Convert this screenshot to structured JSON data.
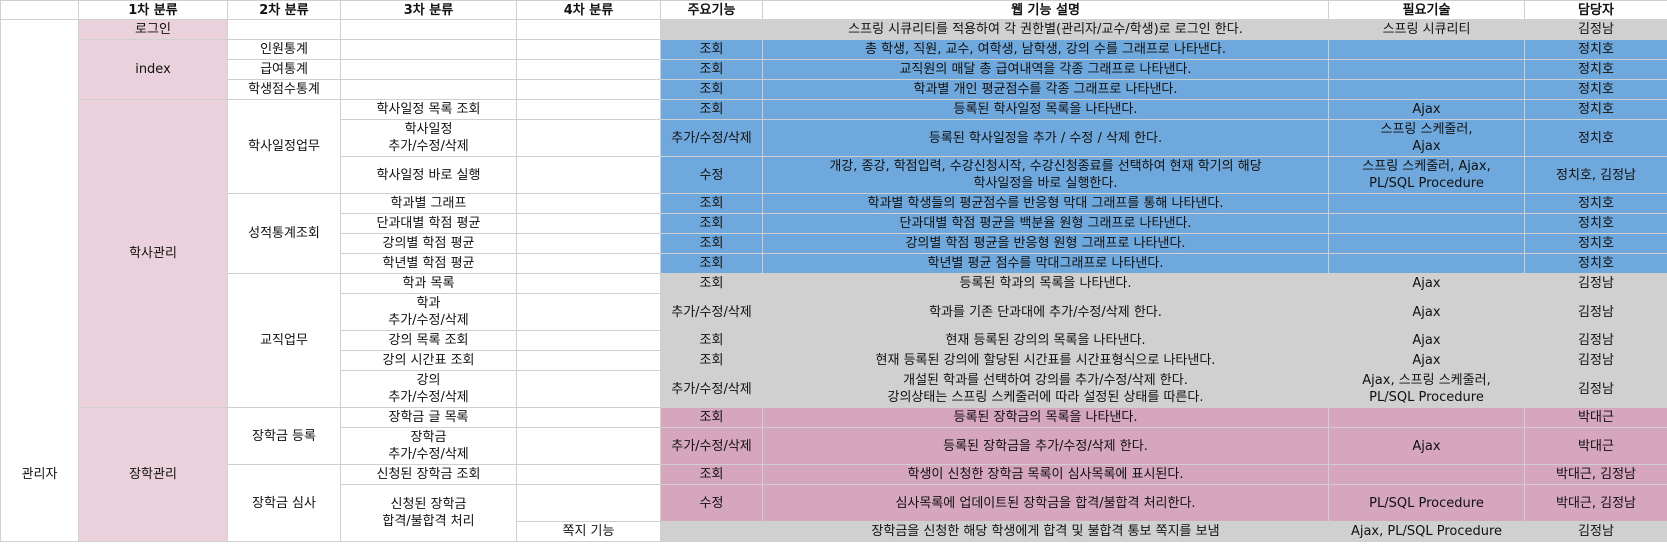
{
  "headers": [
    "1차 분류",
    "2차 분류",
    "3차 분류",
    "4차 분류",
    "주요기능",
    "웹 기능 설명",
    "필요기술",
    "담당자"
  ],
  "col0": "관리자",
  "cat1": {
    "login": "로그인",
    "index": "index",
    "academic": "학사관리",
    "scholarship": "장학관리"
  },
  "cat2": {
    "staff_stats": "인원통계",
    "salary_stats": "급여통계",
    "student_score_stats": "학생점수통계",
    "schedule_work": "학사일정업무",
    "grade_stats": "성적통계조회",
    "faculty_work": "교직업무",
    "scholarship_reg": "장학금 등록",
    "scholarship_review": "장학금 심사"
  },
  "rows": [
    {
      "c3": "",
      "c4": "",
      "func": "",
      "desc": "스프링 시큐리티를 적용하여 각 권한별(관리자/교수/학생)로 로그인 한다.",
      "tech": "스프링 시큐리티",
      "owner": "김정남"
    },
    {
      "c3": "",
      "c4": "",
      "func": "조회",
      "desc": "총 학생, 직원, 교수, 여학생, 남학생, 강의 수를 그래프로 나타낸다.",
      "tech": "",
      "owner": "정치호"
    },
    {
      "c3": "",
      "c4": "",
      "func": "조회",
      "desc": "교직원의 매달 총 급여내역을 각종 그래프로 나타낸다.",
      "tech": "",
      "owner": "정치호"
    },
    {
      "c3": "",
      "c4": "",
      "func": "조회",
      "desc": "학과별 개인 평균점수를 각종 그래프로 나타낸다.",
      "tech": "",
      "owner": "정치호"
    },
    {
      "c3": "학사일정 목록 조회",
      "c4": "",
      "func": "조회",
      "desc": "등록된 학사일정 목록을 나타낸다.",
      "tech": "Ajax",
      "owner": "정치호"
    },
    {
      "c3": "학사일정\n추가/수정/삭제",
      "c4": "",
      "func": "추가/수정/삭제",
      "desc": "등록된 학사일정을 추가 / 수정 / 삭제 한다.",
      "tech": "스프링 스케줄러,\nAjax",
      "owner": "정치호"
    },
    {
      "c3": "학사일정 바로 실행",
      "c4": "",
      "func": "수정",
      "desc": "개강, 종강, 학점입력, 수강신청시작, 수강신청종료를 선택하여 현재 학기의 해당\n학사일정을 바로 실행한다.",
      "tech": "스프링 스케줄러, Ajax,\nPL/SQL Procedure",
      "owner": "정치호, 김정남"
    },
    {
      "c3": "학과별 그래프",
      "c4": "",
      "func": "조회",
      "desc": "학과별 학생들의 평균점수를 반응형 막대 그래프를 통해 나타낸다.",
      "tech": "",
      "owner": "정치호"
    },
    {
      "c3": "단과대별 학점 평균",
      "c4": "",
      "func": "조회",
      "desc": "단과대별 학점 평균을 백분율 원형 그래프로 나타낸다.",
      "tech": "",
      "owner": "정치호"
    },
    {
      "c3": "강의별 학점 평균",
      "c4": "",
      "func": "조회",
      "desc": "강의별 학점 평균을 반응형 원형 그래프로 나타낸다.",
      "tech": "",
      "owner": "정치호"
    },
    {
      "c3": "학년별 학점 평균",
      "c4": "",
      "func": "조회",
      "desc": "학년별 평균 점수를 막대그래프로 나타낸다.",
      "tech": "",
      "owner": "정치호"
    },
    {
      "c3": "학과 목록",
      "c4": "",
      "func": "조회",
      "desc": "등록된 학과의 목록을 나타낸다.",
      "tech": "Ajax",
      "owner": "김정남"
    },
    {
      "c3": "학과\n추가/수정/삭제",
      "c4": "",
      "func": "추가/수정/삭제",
      "desc": "학과를 기존 단과대에 추가/수정/삭제 한다.",
      "tech": "Ajax",
      "owner": "김정남"
    },
    {
      "c3": "강의 목록 조회",
      "c4": "",
      "func": "조회",
      "desc": "현재 등록된 강의의 목록을 나타낸다.",
      "tech": "Ajax",
      "owner": "김정남"
    },
    {
      "c3": "강의 시간표 조회",
      "c4": "",
      "func": "조회",
      "desc": "현재 등록된 강의에 할당된 시간표를 시간표형식으로 나타낸다.",
      "tech": "Ajax",
      "owner": "김정남"
    },
    {
      "c3": "강의\n추가/수정/삭제",
      "c4": "",
      "func": "추가/수정/삭제",
      "desc": "개설된 학과를 선택하여 강의를 추가/수정/삭제 한다.\n강의상태는 스프링 스케줄러에 따라 설정된 상태를 따른다.",
      "tech": "Ajax, 스프링 스케줄러,\nPL/SQL Procedure",
      "owner": "김정남"
    },
    {
      "c3": "장학금 글 목록",
      "c4": "",
      "func": "조회",
      "desc": "등록된 장학금의 목록을 나타낸다.",
      "tech": "",
      "owner": "박대근"
    },
    {
      "c3": "장학금\n추가/수정/삭제",
      "c4": "",
      "func": "추가/수정/삭제",
      "desc": "등록된 장학금을 추가/수정/삭제 한다.",
      "tech": "Ajax",
      "owner": "박대근"
    },
    {
      "c3": "신청된 장학금 조회",
      "c4": "",
      "func": "조회",
      "desc": "학생이 신청한 장학금 목록이 심사목록에 표시된다.",
      "tech": "",
      "owner": "박대근, 김정남"
    },
    {
      "c3": "신청된 장학금\n합격/불합격 처리",
      "c4": "",
      "func": "수정",
      "desc": "심사목록에 업데이트된 장학금을 합격/불합격 처리한다.",
      "tech": "PL/SQL Procedure",
      "owner": "박대근, 김정남"
    },
    {
      "c3": "",
      "c4": "쪽지 기능",
      "func": "",
      "desc": "장학금을 신청한 해당 학생에게 합격 및 불합격 통보 쪽지를 보냄",
      "tech": "Ajax, PL/SQL Procedure",
      "owner": "김정남"
    }
  ]
}
